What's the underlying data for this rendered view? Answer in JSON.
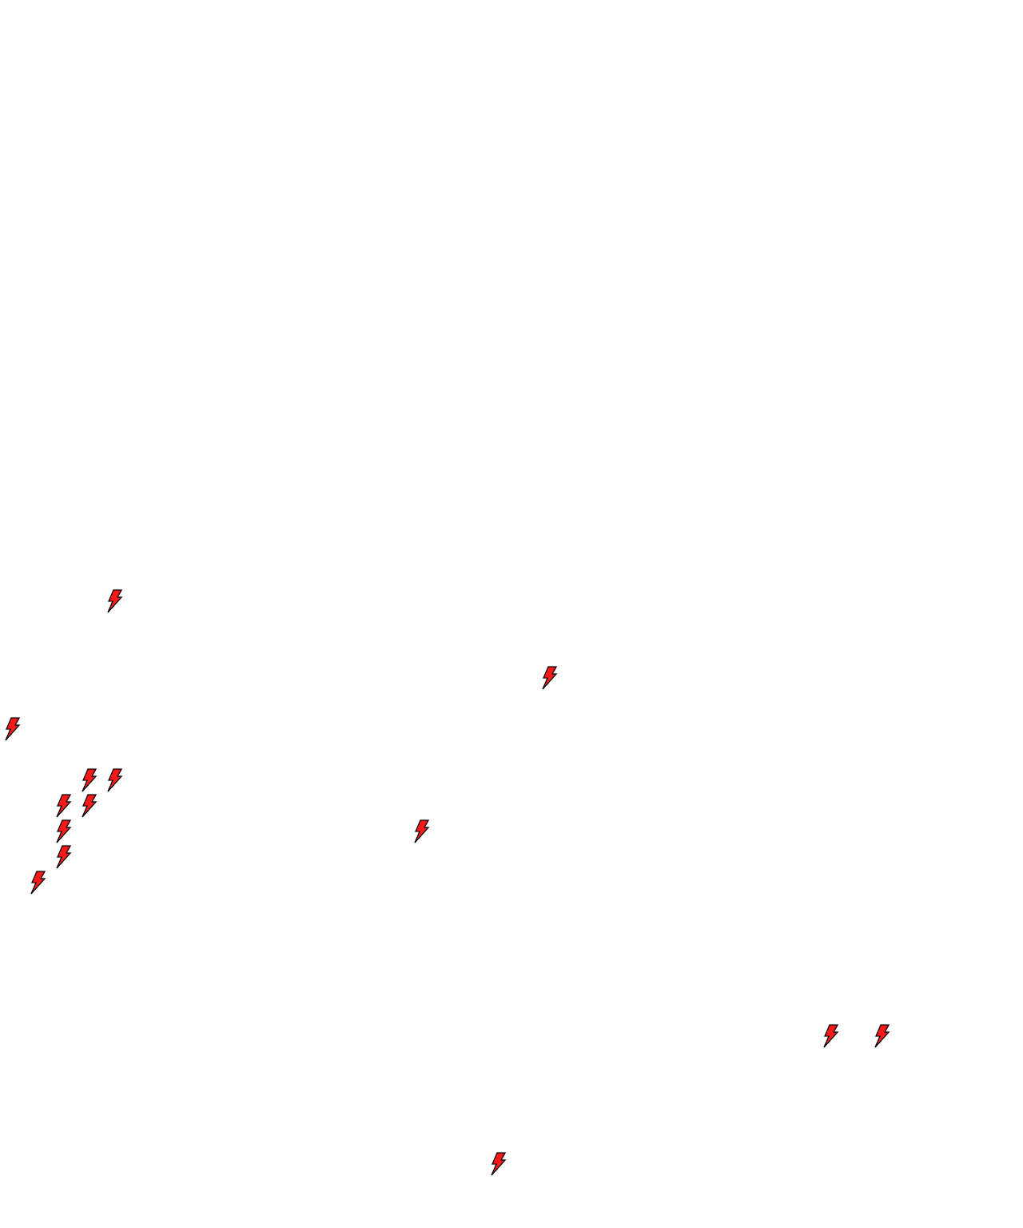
{
  "map": {
    "marker": {
      "icon": "lightning-bolt-icon",
      "fill_color": "#ff1a1a",
      "stroke_color": "#000000"
    },
    "marker_count": 14
  }
}
